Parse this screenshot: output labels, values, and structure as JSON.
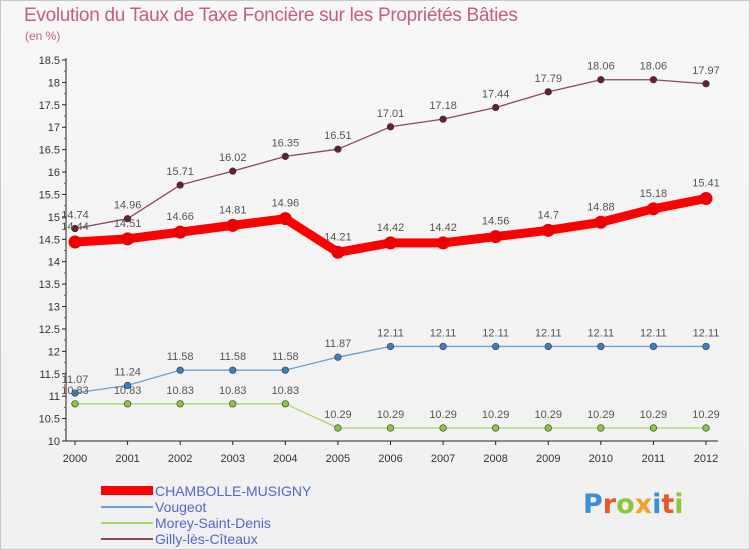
{
  "title": "Evolution du Taux de Taxe Foncière sur les Propriétés Bâties",
  "unit_label": "(en %)",
  "logo": {
    "text": "Proxiti",
    "colors": [
      "#3a8fd6",
      "#e8562a",
      "#8cc63f",
      "#f2a22c",
      "#3a8fd6",
      "#e8562a",
      "#8cc63f"
    ]
  },
  "chart_data": {
    "type": "line",
    "title": "Evolution du Taux de Taxe Foncière sur les Propriétés Bâties",
    "ylabel": "(en %)",
    "xlabel": "",
    "x": [
      "2000",
      "2001",
      "2002",
      "2003",
      "2004",
      "2005",
      "2006",
      "2007",
      "2008",
      "2009",
      "2010",
      "2011",
      "2012"
    ],
    "ylim": [
      10,
      18.5
    ],
    "yticks": [
      "10",
      "10.5",
      "11",
      "11.5",
      "12",
      "12.5",
      "13",
      "13.5",
      "14",
      "14.5",
      "15",
      "15.5",
      "16",
      "16.5",
      "17",
      "17.5",
      "18",
      "18.5"
    ],
    "grid": false,
    "legend_position": "bottom-left",
    "series": [
      {
        "name": "CHAMBOLLE-MUSIGNY",
        "color": "#ff0000",
        "marker": "#ee0000",
        "width": "thick",
        "values": [
          14.44,
          14.51,
          14.66,
          14.81,
          14.96,
          14.21,
          14.42,
          14.42,
          14.56,
          14.7,
          14.88,
          15.18,
          15.41
        ],
        "labels": [
          "14.44",
          "14.51",
          "14.66",
          "14.81",
          "14.96",
          "14.21",
          "14.42",
          "14.42",
          "14.56",
          "14.7",
          "14.88",
          "15.18",
          "15.41"
        ]
      },
      {
        "name": "Vougeot",
        "color": "#6a9fd0",
        "marker": "#3a7fc0",
        "width": "thin",
        "values": [
          11.07,
          11.24,
          11.58,
          11.58,
          11.58,
          11.87,
          12.11,
          12.11,
          12.11,
          12.11,
          12.11,
          12.11,
          12.11
        ],
        "labels": [
          "11.07",
          "11.24",
          "11.58",
          "11.58",
          "11.58",
          "11.87",
          "12.11",
          "12.11",
          "12.11",
          "12.11",
          "12.11",
          "12.11",
          "12.11"
        ]
      },
      {
        "name": "Morey-Saint-Denis",
        "color": "#a6d96a",
        "marker": "#8cc63f",
        "width": "thin",
        "values": [
          10.83,
          10.83,
          10.83,
          10.83,
          10.83,
          10.29,
          10.29,
          10.29,
          10.29,
          10.29,
          10.29,
          10.29,
          10.29
        ],
        "labels": [
          "10.83",
          "10.83",
          "10.83",
          "10.83",
          "10.83",
          "10.29",
          "10.29",
          "10.29",
          "10.29",
          "10.29",
          "10.29",
          "10.29",
          "10.29"
        ]
      },
      {
        "name": "Gilly-lès-Cîteaux",
        "color": "#8b4a5a",
        "marker": "#6b1e2e",
        "width": "thin",
        "values": [
          14.74,
          14.96,
          15.71,
          16.02,
          16.35,
          16.51,
          17.01,
          17.18,
          17.44,
          17.79,
          18.06,
          18.06,
          17.97
        ],
        "labels": [
          "14.74",
          "14.96",
          "15.71",
          "16.02",
          "16.35",
          "16.51",
          "17.01",
          "17.18",
          "17.44",
          "17.79",
          "18.06",
          "18.06",
          "17.97"
        ]
      }
    ]
  }
}
